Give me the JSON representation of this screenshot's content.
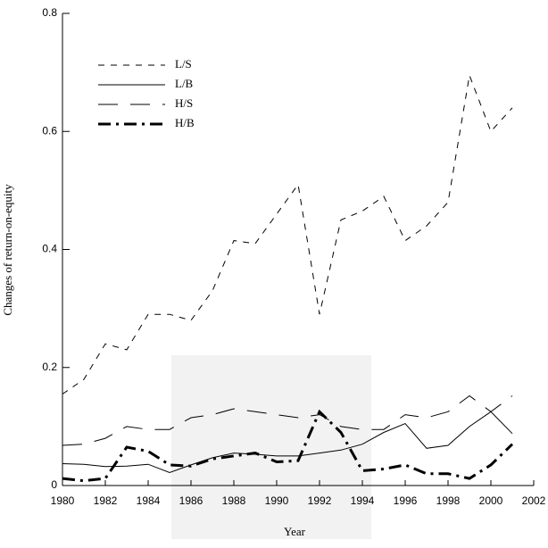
{
  "chart_data": {
    "type": "line",
    "x_label": "Year",
    "y_label": "Changes of return-on-equity",
    "x": [
      1980,
      1981,
      1982,
      1983,
      1984,
      1985,
      1986,
      1987,
      1988,
      1989,
      1990,
      1991,
      1992,
      1993,
      1994,
      1995,
      1996,
      1997,
      1998,
      1999,
      2000,
      2001
    ],
    "series": [
      {
        "name": "L/S",
        "color": "#000000",
        "line_style": "dashed",
        "values": [
          0.155,
          0.18,
          0.24,
          0.23,
          0.29,
          0.29,
          0.28,
          0.33,
          0.415,
          0.41,
          0.46,
          0.51,
          0.29,
          0.45,
          0.465,
          0.49,
          0.415,
          0.44,
          0.48,
          0.695,
          0.6,
          0.64
        ]
      },
      {
        "name": "L/B",
        "color": "#000000",
        "line_style": "solid",
        "values": [
          0.037,
          0.036,
          0.032,
          0.033,
          0.036,
          0.022,
          0.035,
          0.047,
          0.055,
          0.053,
          0.05,
          0.05,
          0.055,
          0.06,
          0.07,
          0.09,
          0.105,
          0.063,
          0.068,
          0.1,
          0.125,
          0.088
        ]
      },
      {
        "name": "H/S",
        "color": "#000000",
        "line_style": "long-dashed",
        "values": [
          0.068,
          0.07,
          0.08,
          0.1,
          0.095,
          0.095,
          0.115,
          0.12,
          0.13,
          0.125,
          0.12,
          0.115,
          0.12,
          0.1,
          0.095,
          0.095,
          0.12,
          0.115,
          0.125,
          0.152,
          0.125,
          0.152
        ]
      },
      {
        "name": "H/B",
        "color": "#000000",
        "line_style": "dash-dot",
        "values": [
          0.012,
          0.008,
          0.012,
          0.065,
          0.058,
          0.035,
          0.033,
          0.045,
          0.05,
          0.055,
          0.04,
          0.042,
          0.125,
          0.09,
          0.025,
          0.028,
          0.035,
          0.02,
          0.02,
          0.012,
          0.035,
          0.07
        ]
      }
    ],
    "xlim": [
      1980,
      2002
    ],
    "xticks": [
      1980,
      1982,
      1984,
      1986,
      1988,
      1990,
      1992,
      1994,
      1996,
      1998,
      2000,
      2002
    ],
    "ylim": [
      0,
      0.8
    ],
    "yticks": [
      0,
      0.2,
      0.4,
      0.6,
      0.8
    ],
    "grid": false,
    "legend": "upper left"
  }
}
